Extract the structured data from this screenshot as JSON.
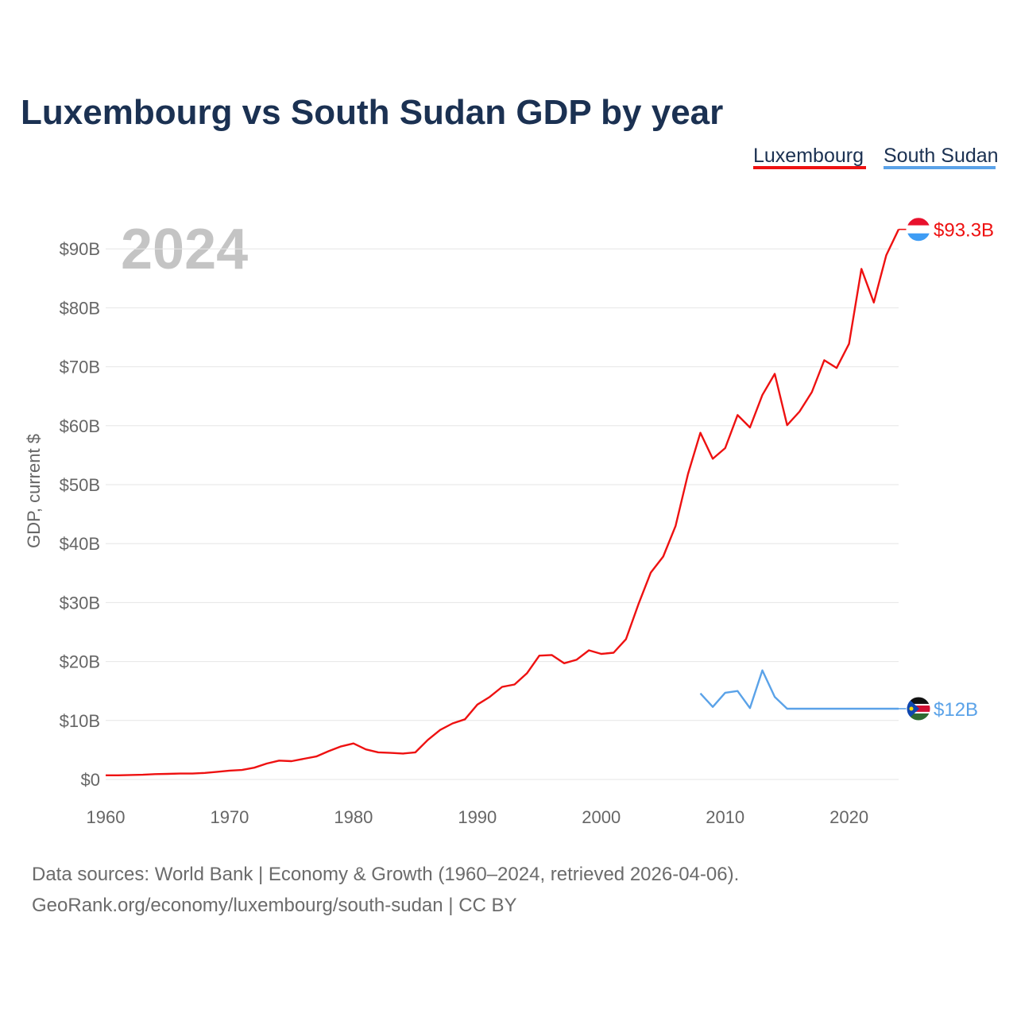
{
  "chart_data": {
    "type": "line",
    "title": "Luxembourg vs South Sudan GDP by year",
    "ylabel": "GDP, current $",
    "xlabel": "",
    "current_year": "2024",
    "xlim": [
      1960,
      2024
    ],
    "ylim": [
      0,
      95
    ],
    "x_ticks": [
      1960,
      1970,
      1980,
      1990,
      2000,
      2010,
      2020
    ],
    "y_ticks": [
      0,
      10,
      20,
      30,
      40,
      50,
      60,
      70,
      80,
      90
    ],
    "y_tick_labels": [
      "$0",
      "$10B",
      "$20B",
      "$30B",
      "$40B",
      "$50B",
      "$60B",
      "$70B",
      "$80B",
      "$90B"
    ],
    "series": [
      {
        "name": "Luxembourg",
        "color": "#ee1111",
        "end_label": "$93.3B",
        "flag": "luxembourg-flag",
        "x": [
          1960,
          1961,
          1962,
          1963,
          1964,
          1965,
          1966,
          1967,
          1968,
          1969,
          1970,
          1971,
          1972,
          1973,
          1974,
          1975,
          1976,
          1977,
          1978,
          1979,
          1980,
          1981,
          1982,
          1983,
          1984,
          1985,
          1986,
          1987,
          1988,
          1989,
          1990,
          1991,
          1992,
          1993,
          1994,
          1995,
          1996,
          1997,
          1998,
          1999,
          2000,
          2001,
          2002,
          2003,
          2004,
          2005,
          2006,
          2007,
          2008,
          2009,
          2010,
          2011,
          2012,
          2013,
          2014,
          2015,
          2016,
          2017,
          2018,
          2019,
          2020,
          2021,
          2022,
          2023,
          2024
        ],
        "values": [
          0.7,
          0.7,
          0.75,
          0.8,
          0.9,
          0.95,
          1.0,
          1.0,
          1.1,
          1.3,
          1.5,
          1.6,
          2.0,
          2.7,
          3.2,
          3.1,
          3.5,
          3.9,
          4.8,
          5.6,
          6.1,
          5.1,
          4.6,
          4.5,
          4.4,
          4.6,
          6.7,
          8.4,
          9.5,
          10.2,
          12.7,
          14.0,
          15.7,
          16.1,
          18.0,
          21.0,
          21.1,
          19.7,
          20.3,
          21.9,
          21.3,
          21.5,
          23.8,
          29.7,
          35.1,
          37.8,
          43.0,
          51.8,
          58.8,
          54.4,
          56.2,
          61.8,
          59.7,
          65.2,
          68.8,
          60.1,
          62.4,
          65.7,
          71.1,
          69.8,
          73.9,
          86.6,
          80.9,
          88.9,
          93.3
        ]
      },
      {
        "name": "South Sudan",
        "color": "#5aa2e8",
        "end_label": "$12B",
        "flag": "south-sudan-flag",
        "x": [
          2008,
          2009,
          2010,
          2011,
          2012,
          2013,
          2014,
          2015,
          2016,
          2017,
          2018,
          2019,
          2020,
          2021,
          2022,
          2023,
          2024
        ],
        "values": [
          14.6,
          12.3,
          14.7,
          15.0,
          12.1,
          18.5,
          14.0,
          12.0,
          12.0,
          12.0,
          12.0,
          12.0,
          12.0,
          12.0,
          12.0,
          12.0,
          12.0
        ]
      }
    ],
    "legend_position": "top-right",
    "grid": true
  },
  "source_line_1": "Data sources: World Bank | Economy & Growth (1960–2024, retrieved 2026-04-06).",
  "source_line_2": "GeoRank.org/economy/luxembourg/south-sudan | CC BY"
}
